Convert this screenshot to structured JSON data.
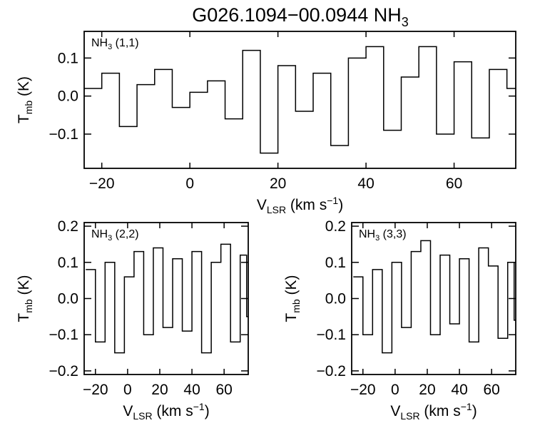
{
  "figure": {
    "title_main": "G026.1094−00.0944 NH",
    "title_sub": "3"
  },
  "chart_data": [
    {
      "type": "line",
      "step": true,
      "label_main": "NH",
      "label_sub": "3",
      "label_tail": " (1,1)",
      "xlabel_main": "V",
      "xlabel_sub": "LSR",
      "xlabel_tail": " (km s",
      "xlabel_sup": "−1",
      "xlabel_end": ")",
      "ylabel_main": "T",
      "ylabel_sub": "mb",
      "ylabel_tail": " (K)",
      "xlim": [
        -24,
        74
      ],
      "ylim": [
        -0.19,
        0.17
      ],
      "xticks": [
        -20,
        0,
        20,
        40,
        60
      ],
      "xtick_labels": [
        "−20",
        "0",
        "20",
        "40",
        "60"
      ],
      "yticks": [
        0.1,
        0.0,
        -0.1
      ],
      "ytick_labels": [
        "0.1",
        "0.0",
        "−0.1"
      ],
      "x": [
        -24,
        -20,
        -16,
        -12,
        -8,
        -4,
        0,
        4,
        8,
        12,
        16,
        20,
        24,
        28,
        32,
        36,
        40,
        44,
        48,
        52,
        56,
        60,
        64,
        68,
        72
      ],
      "y": [
        0.02,
        0.06,
        -0.08,
        0.03,
        0.07,
        -0.03,
        0.01,
        0.04,
        -0.06,
        0.12,
        -0.15,
        0.08,
        -0.04,
        0.06,
        -0.13,
        0.1,
        0.13,
        -0.09,
        0.05,
        0.13,
        -0.1,
        0.09,
        -0.11,
        0.07,
        0.02
      ]
    },
    {
      "type": "line",
      "step": true,
      "label_main": "NH",
      "label_sub": "3",
      "label_tail": " (2,2)",
      "xlabel_main": "V",
      "xlabel_sub": "LSR",
      "xlabel_tail": " (km s",
      "xlabel_sup": "−1",
      "xlabel_end": ")",
      "ylabel_main": "T",
      "ylabel_sub": "mb",
      "ylabel_tail": " (K)",
      "xlim": [
        -27,
        75
      ],
      "ylim": [
        -0.21,
        0.21
      ],
      "xticks": [
        -20,
        0,
        20,
        40,
        60
      ],
      "xtick_labels": [
        "−20",
        "0",
        "20",
        "40",
        "60"
      ],
      "yticks": [
        0.2,
        0.1,
        0.0,
        -0.1,
        -0.2
      ],
      "ytick_labels": [
        "0.2",
        "0.1",
        "0.0",
        "−0.1",
        "−0.2"
      ],
      "x": [
        -26,
        -20,
        -14,
        -8,
        -2,
        4,
        10,
        16,
        22,
        28,
        34,
        40,
        46,
        52,
        58,
        64,
        70,
        74
      ],
      "y": [
        0.08,
        -0.12,
        0.1,
        -0.15,
        0.06,
        0.13,
        -0.1,
        0.14,
        -0.08,
        0.11,
        -0.09,
        0.13,
        -0.15,
        0.1,
        0.15,
        -0.12,
        0.12,
        -0.05
      ]
    },
    {
      "type": "line",
      "step": true,
      "label_main": "NH",
      "label_sub": "3",
      "label_tail": " (3,3)",
      "xlabel_main": "V",
      "xlabel_sub": "LSR",
      "xlabel_tail": " (km s",
      "xlabel_sup": "−1",
      "xlabel_end": ")",
      "ylabel_main": "T",
      "ylabel_sub": "mb",
      "ylabel_tail": " (K)",
      "xlim": [
        -27,
        75
      ],
      "ylim": [
        -0.21,
        0.21
      ],
      "xticks": [
        -20,
        0,
        20,
        40,
        60
      ],
      "xtick_labels": [
        "−20",
        "0",
        "20",
        "40",
        "60"
      ],
      "yticks": [
        0.2,
        0.1,
        0.0,
        -0.1,
        -0.2
      ],
      "ytick_labels": [
        "0.2",
        "0.1",
        "0.0",
        "−0.1",
        "−0.2"
      ],
      "x": [
        -26,
        -20,
        -14,
        -8,
        -2,
        4,
        10,
        16,
        22,
        28,
        34,
        40,
        46,
        52,
        58,
        64,
        70,
        74
      ],
      "y": [
        0.06,
        -0.1,
        0.08,
        -0.15,
        0.1,
        -0.08,
        0.13,
        0.16,
        -0.1,
        0.12,
        -0.07,
        0.11,
        -0.12,
        0.14,
        0.09,
        -0.11,
        0.1,
        -0.06
      ]
    }
  ]
}
